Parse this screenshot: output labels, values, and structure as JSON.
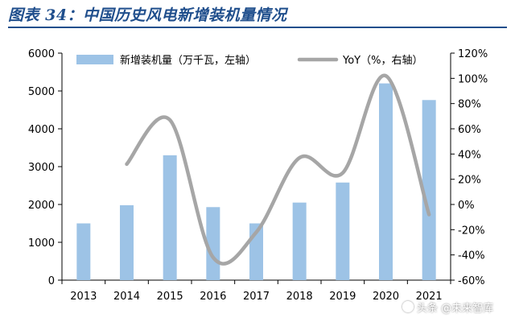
{
  "header": {
    "title": "图表 34：中国历史风电新增装机量情况"
  },
  "chart_data": {
    "type": "bar",
    "categories": [
      "2013",
      "2014",
      "2015",
      "2016",
      "2017",
      "2018",
      "2019",
      "2020",
      "2021"
    ],
    "series": [
      {
        "name": "新增装机量（万千瓦，左轴）",
        "kind": "bar",
        "axis": "left",
        "color": "#9dc3e6",
        "values": [
          1500,
          1980,
          3300,
          1930,
          1500,
          2050,
          2580,
          5200,
          4760
        ]
      },
      {
        "name": "YoY（%，右轴）",
        "kind": "line",
        "axis": "right",
        "color": "#a6a6a6",
        "smooth": true,
        "values": [
          null,
          32,
          67,
          -42,
          -22,
          37,
          25,
          102,
          -8
        ]
      }
    ],
    "y_left": {
      "ylim": [
        0,
        6000
      ],
      "ticks": [
        "0",
        "1000",
        "2000",
        "3000",
        "4000",
        "5000",
        "6000"
      ]
    },
    "y_right": {
      "ylim": [
        -60,
        120
      ],
      "ticks": [
        "-60%",
        "-40%",
        "-20%",
        "0%",
        "20%",
        "40%",
        "60%",
        "80%",
        "100%",
        "120%"
      ]
    },
    "grid": false,
    "legend": "top"
  },
  "watermark": {
    "text": "头条 @未来智库"
  }
}
